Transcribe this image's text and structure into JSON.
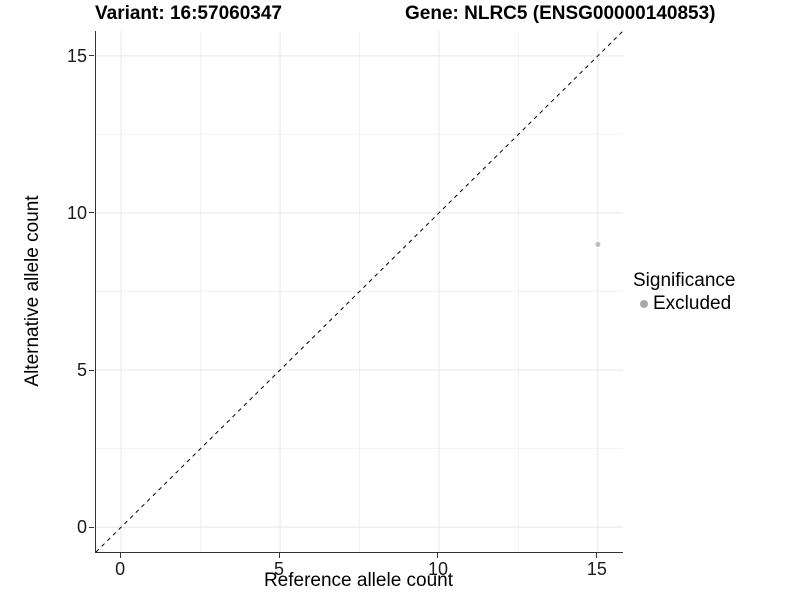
{
  "chart_data": {
    "type": "scatter",
    "title_variant": "Variant: 16:57060347",
    "title_gene": "Gene: NLRC5 (ENSG00000140853)",
    "xlabel": "Reference allele count",
    "ylabel": "Alternative allele count",
    "xlim": [
      -0.79,
      15.79
    ],
    "ylim": [
      -0.79,
      15.79
    ],
    "xticks": [
      0,
      5,
      10,
      15
    ],
    "yticks": [
      0,
      5,
      10,
      15
    ],
    "xminor": [
      2.5,
      7.5,
      12.5
    ],
    "yminor": [
      2.5,
      7.5,
      12.5
    ],
    "grid": true,
    "identity_line": {
      "style": "dashed",
      "slope": 1,
      "intercept": 0,
      "color": "#000000",
      "dash": "4 4"
    },
    "series": [
      {
        "name": "Excluded",
        "color": "#bcbcbc",
        "point_radius": 2.5,
        "points": [
          {
            "x": 15,
            "y": 9
          }
        ]
      }
    ],
    "legend": {
      "position": "right",
      "title": "Significance",
      "items": [
        {
          "label": "Excluded",
          "color": "#a8a8a8"
        }
      ]
    },
    "colors": {
      "grid_major": "#e8e8e8",
      "grid_minor": "#f2f2f2",
      "axis_line": "#333333",
      "tick_mark": "#333333",
      "tick_label": "#1a1a1a",
      "title": "#000000",
      "background": "#ffffff"
    }
  }
}
